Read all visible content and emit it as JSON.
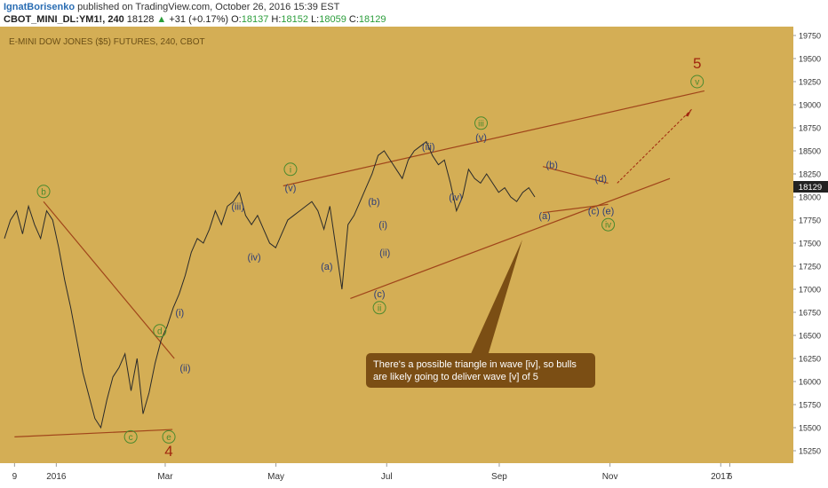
{
  "header": {
    "author": "IgnatBorisenko",
    "published_text": "published on TradingView.com, October 26, 2016 15:39 EST",
    "symbol": "CBOT_MINI_DL:YM1!, 240",
    "last": "18128",
    "change": "+31 (+0.17%)",
    "open_label": "O:",
    "open": "18137",
    "high_label": "H:",
    "high": "18152",
    "low_label": "L:",
    "low": "18059",
    "close_label": "C:",
    "close": "18129"
  },
  "colors": {
    "background": "#d4ae55",
    "price_line": "#2a2a2a",
    "trendline": "#a0451a",
    "wave_label": "#2e3e78",
    "circle_label": "#4b8a2e",
    "big_wave": "#a0260e",
    "callout_bg": "#7b4e14",
    "price_tag": "#222222"
  },
  "chart_data": {
    "type": "line",
    "title": "E-MINI DOW JONES ($5) FUTURES, 240, CBOT",
    "x_tick_labels": [
      "9",
      "2016",
      "Mar",
      "May",
      "Jul",
      "Sep",
      "Nov",
      "2017",
      "6"
    ],
    "y_tick_labels": [
      "19750",
      "19500",
      "19250",
      "19000",
      "18750",
      "18500",
      "18250",
      "18000",
      "17750",
      "17500",
      "17250",
      "17000",
      "16750",
      "16500",
      "16250",
      "16000",
      "15750",
      "15500",
      "15250"
    ],
    "ylim": [
      15150,
      19800
    ],
    "current_price_label": "18129",
    "series": [
      {
        "values": [
          17550,
          17750,
          17850,
          17600,
          17900,
          17700,
          17550,
          17850,
          17750,
          17450,
          17100,
          16800,
          16450,
          16100,
          15850,
          15600,
          15500,
          15800,
          16050,
          16150,
          16300,
          15900,
          16250,
          15650,
          15880,
          16200,
          16450,
          16600,
          16800,
          16950,
          17150,
          17400,
          17550,
          17500,
          17650,
          17850,
          17700,
          17900,
          17950,
          18050,
          17800,
          17700,
          17800,
          17650,
          17500,
          17450,
          17600,
          17750,
          17800,
          17850,
          17900,
          17950,
          17850,
          17650,
          17900,
          17450,
          17000,
          17700,
          17800,
          17950,
          18100,
          18250,
          18450,
          18500,
          18400,
          18300,
          18200,
          18400,
          18500,
          18550,
          18600,
          18450,
          18350,
          18400,
          18150,
          17850,
          18000,
          18300,
          18200,
          18150,
          18250,
          18150,
          18050,
          18100,
          18000,
          17950,
          18050,
          18100,
          18000
        ]
      }
    ],
    "wave_labels": [
      {
        "text": "b",
        "x": "2015-12-25",
        "y": 18060,
        "style": "circle"
      },
      {
        "text": "c",
        "x": "2016-02-11",
        "y": 15400,
        "style": "circle"
      },
      {
        "text": "d",
        "x": "2016-02-27",
        "y": 16550,
        "style": "circle"
      },
      {
        "text": "e",
        "x": "2016-03-03",
        "y": 15400,
        "style": "circle"
      },
      {
        "text": "4",
        "x": "2016-03-03",
        "y": 15250,
        "style": "big"
      },
      {
        "text": "(i)",
        "x": "2016-03-09",
        "y": 16750,
        "style": "paren"
      },
      {
        "text": "(ii)",
        "x": "2016-03-12",
        "y": 16150,
        "style": "paren"
      },
      {
        "text": "(iii)",
        "x": "2016-04-10",
        "y": 17900,
        "style": "paren"
      },
      {
        "text": "(iv)",
        "x": "2016-04-19",
        "y": 17350,
        "style": "paren"
      },
      {
        "text": "(v)",
        "x": "2016-05-09",
        "y": 18100,
        "style": "paren"
      },
      {
        "text": "i",
        "x": "2016-05-09",
        "y": 18300,
        "style": "circle"
      },
      {
        "text": "(a)",
        "x": "2016-05-29",
        "y": 17250,
        "style": "paren"
      },
      {
        "text": "(b)",
        "x": "2016-06-24",
        "y": 17950,
        "style": "paren"
      },
      {
        "text": "(i)",
        "x": "2016-06-29",
        "y": 17700,
        "style": "paren"
      },
      {
        "text": "(ii)",
        "x": "2016-06-30",
        "y": 17400,
        "style": "paren"
      },
      {
        "text": "(c)",
        "x": "2016-06-27",
        "y": 16950,
        "style": "paren"
      },
      {
        "text": "ii",
        "x": "2016-06-27",
        "y": 16800,
        "style": "circle"
      },
      {
        "text": "(iii)",
        "x": "2016-07-24",
        "y": 18550,
        "style": "paren"
      },
      {
        "text": "(iv)",
        "x": "2016-08-08",
        "y": 18000,
        "style": "paren"
      },
      {
        "text": "(v)",
        "x": "2016-08-22",
        "y": 18650,
        "style": "paren"
      },
      {
        "text": "iii",
        "x": "2016-08-22",
        "y": 18800,
        "style": "circle"
      },
      {
        "text": "(a)",
        "x": "2016-09-26",
        "y": 17800,
        "style": "paren"
      },
      {
        "text": "(b)",
        "x": "2016-09-30",
        "y": 18350,
        "style": "paren"
      },
      {
        "text": "(c)",
        "x": "2016-10-23",
        "y": 17850,
        "style": "paren"
      },
      {
        "text": "(d)",
        "x": "2016-10-27",
        "y": 18200,
        "style": "paren"
      },
      {
        "text": "(e)",
        "x": "2016-10-31",
        "y": 17850,
        "style": "paren"
      },
      {
        "text": "iv",
        "x": "2016-10-31",
        "y": 17700,
        "style": "circle"
      },
      {
        "text": "v",
        "x": "2016-12-19",
        "y": 19250,
        "style": "circle"
      },
      {
        "text": "5",
        "x": "2016-12-19",
        "y": 19450,
        "style": "big"
      }
    ],
    "annotation": "There's a possible triangle in wave [iv], so bulls are likely going to deliver wave [v] of 5"
  }
}
